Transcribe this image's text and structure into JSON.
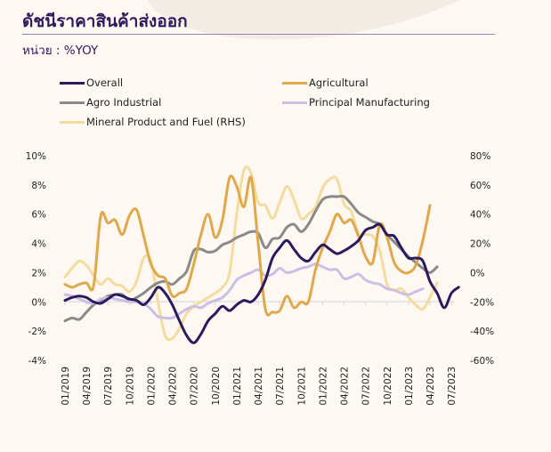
{
  "title": "ดัชนีราคาสินค้าส่งออก",
  "unit_label": "หน่วย : %YOY",
  "chart_data": {
    "type": "line",
    "title": "ดัชนีราคาสินค้าส่งออก",
    "subtitle": "หน่วย : %YOY",
    "xlabel": "",
    "ylabel": "%YOY",
    "y_left": {
      "range": [
        -4,
        10
      ],
      "ticks": [
        "10%",
        "8%",
        "6%",
        "4%",
        "2%",
        "0%",
        "-2%",
        "-4%"
      ],
      "tick_values": [
        10,
        8,
        6,
        4,
        2,
        0,
        -2,
        -4
      ]
    },
    "y_right": {
      "range": [
        -60,
        80
      ],
      "ticks": [
        "80%",
        "60%",
        "40%",
        "20%",
        "0%",
        "-20%",
        "-40%",
        "-60%"
      ],
      "tick_values": [
        80,
        60,
        40,
        20,
        0,
        -20,
        -40,
        -60
      ]
    },
    "x_tick_labels": [
      "01/2019",
      "04/2019",
      "07/2019",
      "10/2019",
      "01/2020",
      "04/2020",
      "07/2020",
      "10/2020",
      "01/2021",
      "04/2021",
      "07/2021",
      "10/2021",
      "01/2022",
      "04/2022",
      "07/2022",
      "10/2022",
      "01/2023",
      "04/2023",
      "07/2023"
    ],
    "x_start": "01/2019",
    "x_step": "1 month",
    "grid": false,
    "legend_position": "top",
    "series": [
      {
        "name": "Overall",
        "axis": "left",
        "color": "#2b1a5e",
        "values": [
          0.1,
          0.3,
          0.4,
          0.3,
          0.0,
          -0.1,
          0.2,
          0.5,
          0.4,
          0.2,
          0.1,
          -0.2,
          0.3,
          1.0,
          0.6,
          -0.2,
          -1.3,
          -2.3,
          -2.8,
          -2.2,
          -1.3,
          -0.8,
          -0.3,
          -0.6,
          -0.2,
          0.1,
          0.0,
          0.5,
          1.5,
          3.0,
          3.7,
          4.2,
          3.6,
          3.0,
          2.8,
          3.4,
          3.9,
          3.6,
          3.3,
          3.5,
          3.8,
          4.2,
          4.9,
          5.1,
          5.3,
          4.6,
          4.5,
          3.7,
          3.0,
          3.0,
          2.8,
          1.4,
          0.6,
          -0.4,
          0.6,
          1.0
        ]
      },
      {
        "name": "Agricultural",
        "axis": "left",
        "color": "#e0a84a",
        "values": [
          1.2,
          1.0,
          1.2,
          1.3,
          1.1,
          5.9,
          5.4,
          5.6,
          4.6,
          5.9,
          6.3,
          4.5,
          2.6,
          1.8,
          1.6,
          0.4,
          0.6,
          0.9,
          2.6,
          4.6,
          6.0,
          4.4,
          5.6,
          8.5,
          7.9,
          6.5,
          8.5,
          4.0,
          -0.5,
          -0.7,
          -0.6,
          0.4,
          -0.4,
          0.0,
          0.0,
          2.2,
          3.7,
          4.8,
          6.0,
          5.4,
          5.6,
          4.5,
          3.1,
          2.7,
          5.3,
          4.4,
          2.7,
          2.1,
          2.0,
          2.5,
          4.2,
          6.6
        ]
      },
      {
        "name": "Agro Industrial",
        "axis": "left",
        "color": "#8a8a8a",
        "values": [
          -1.3,
          -1.1,
          -1.2,
          -0.7,
          -0.2,
          0.1,
          0.4,
          0.5,
          0.5,
          0.1,
          0.3,
          0.6,
          1.0,
          1.3,
          1.4,
          1.2,
          1.6,
          2.1,
          3.5,
          3.6,
          3.4,
          3.5,
          3.9,
          4.1,
          4.4,
          4.6,
          4.8,
          4.7,
          3.7,
          4.3,
          4.4,
          5.1,
          5.3,
          4.8,
          5.3,
          6.2,
          7.0,
          7.2,
          7.2,
          7.2,
          6.7,
          6.1,
          5.8,
          5.5,
          5.3,
          4.6,
          4.1,
          3.6,
          3.1,
          2.7,
          2.3,
          2.0,
          2.4
        ]
      },
      {
        "name": "Principal Manufacturing",
        "axis": "left",
        "color": "#cbbfe6",
        "values": [
          0.5,
          0.4,
          0.2,
          0.0,
          -0.1,
          0.2,
          0.3,
          0.2,
          0.1,
          0.0,
          0.0,
          -0.1,
          -0.5,
          -1.0,
          -1.1,
          -1.1,
          -0.8,
          -0.5,
          -0.3,
          -0.4,
          -0.1,
          0.1,
          0.3,
          0.8,
          1.5,
          1.8,
          2.0,
          2.2,
          1.8,
          1.9,
          2.3,
          2.0,
          2.1,
          2.3,
          2.4,
          2.6,
          2.4,
          2.2,
          2.2,
          1.6,
          1.7,
          1.9,
          1.5,
          1.3,
          1.2,
          0.9,
          0.8,
          0.6,
          0.5,
          0.7,
          0.9
        ]
      },
      {
        "name": "Mineral Product and Fuel (RHS)",
        "axis": "right",
        "color": "#f3dc9e",
        "values": [
          -3,
          3,
          8,
          5,
          -2,
          -8,
          -4,
          -8,
          -9,
          -13,
          -6,
          10,
          8,
          -20,
          -43,
          -45,
          -38,
          -28,
          -23,
          -20,
          -17,
          -14,
          -10,
          0,
          40,
          70,
          68,
          48,
          46,
          37,
          48,
          59,
          50,
          37,
          40,
          45,
          58,
          64,
          64,
          47,
          42,
          27,
          26,
          25,
          15,
          -8,
          -12,
          -11,
          -17,
          -22,
          -25,
          -17,
          -7
        ]
      }
    ]
  },
  "legend": [
    {
      "label": "Overall",
      "color": "#2b1a5e"
    },
    {
      "label": "Agricultural",
      "color": "#e0a84a"
    },
    {
      "label": "Agro Industrial",
      "color": "#8a8a8a"
    },
    {
      "label": "Principal Manufacturing",
      "color": "#cbbfe6"
    },
    {
      "label": "Mineral Product and Fuel (RHS)",
      "color": "#f3dc9e"
    }
  ]
}
